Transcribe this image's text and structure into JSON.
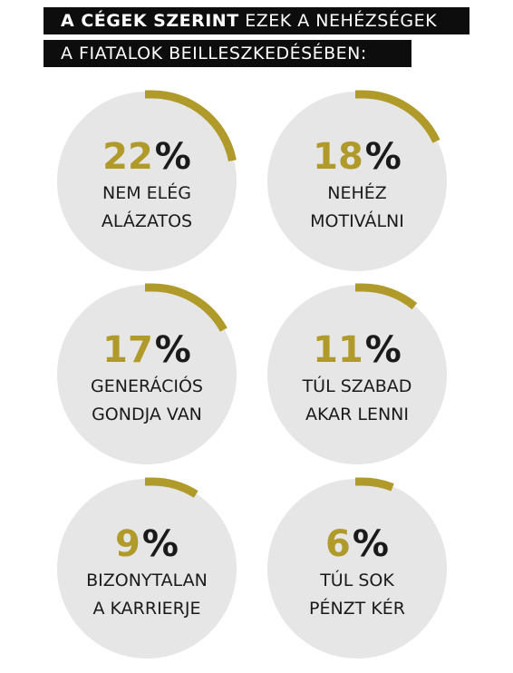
{
  "title": {
    "line1_bold": "A CÉGEK SZERINT",
    "line1_rest": " EZEK A NEHÉZSÉGEK",
    "line2": "A FIATALOK BEILLESZKEDÉSÉBEN:"
  },
  "colors": {
    "accent": "#b09a2a",
    "circle": "#e6e6e6",
    "text": "#1a1a1a",
    "title_bg": "#0d0d0d"
  },
  "chart_data": {
    "type": "pie",
    "unit": "%",
    "items": [
      {
        "value": 22,
        "label_lines": [
          "NEM ELÉG",
          "ALÁZATOS"
        ]
      },
      {
        "value": 18,
        "label_lines": [
          "NEHÉZ",
          "MOTIVÁLNI"
        ]
      },
      {
        "value": 17,
        "label_lines": [
          "GENERÁCIÓS",
          "GONDJA VAN"
        ]
      },
      {
        "value": 11,
        "label_lines": [
          "TÚL SZABAD",
          "AKAR LENNI"
        ]
      },
      {
        "value": 9,
        "label_lines": [
          "BIZONYTALAN",
          "A KARRIERJE"
        ]
      },
      {
        "value": 6,
        "label_lines": [
          "TÚL SOK",
          "PÉNZT KÉR"
        ]
      }
    ]
  }
}
